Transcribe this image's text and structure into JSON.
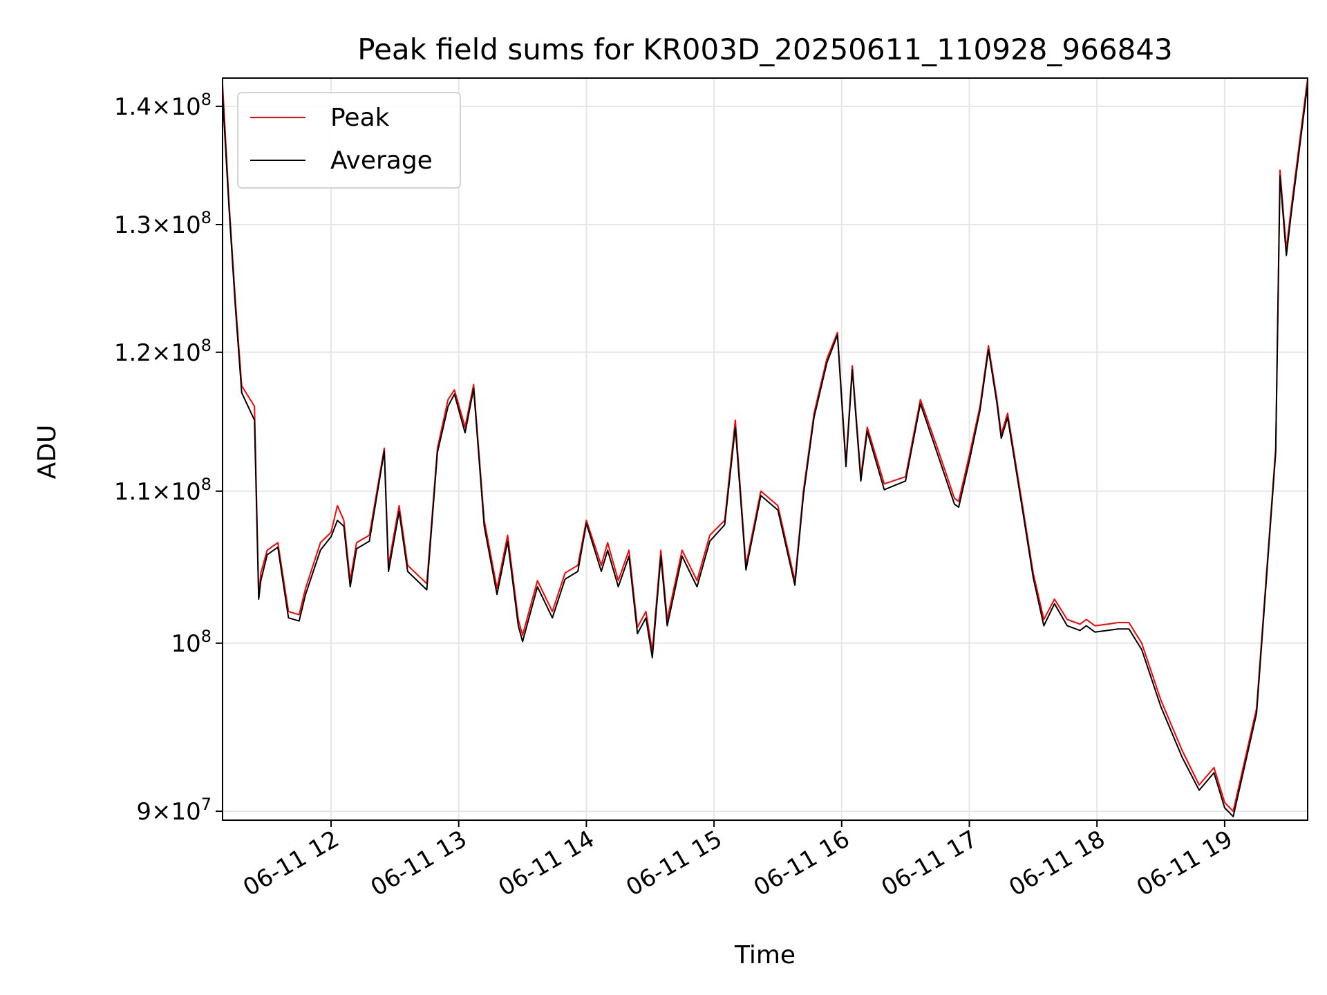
{
  "chart_data": {
    "type": "line",
    "title": "Peak field sums for KR003D_20250611_110928_966843",
    "xlabel": "Time",
    "ylabel": "ADU",
    "yscale": "log",
    "ylim": [
      89500000,
      142500000
    ],
    "xlim": [
      "2025-06-11 11:09",
      "2025-06-11 19:39"
    ],
    "grid": true,
    "legend": {
      "placement": "upper-left",
      "entries": [
        "Peak",
        "Average"
      ]
    },
    "colors": {
      "Peak": "#ff0000",
      "Average": "#000000"
    },
    "yticks": [
      {
        "value": 90000000,
        "base": "9",
        "exp": "7"
      },
      {
        "value": 100000000,
        "base": "",
        "exp": "8"
      },
      {
        "value": 110000000,
        "base": "1.1",
        "exp": "8"
      },
      {
        "value": 120000000,
        "base": "1.2",
        "exp": "8"
      },
      {
        "value": 130000000,
        "base": "1.3",
        "exp": "8"
      },
      {
        "value": 140000000,
        "base": "1.4",
        "exp": "8"
      }
    ],
    "xticks": [
      {
        "value": "2025-06-11 12:00",
        "label": "06-11 12"
      },
      {
        "value": "2025-06-11 13:00",
        "label": "06-11 13"
      },
      {
        "value": "2025-06-11 14:00",
        "label": "06-11 14"
      },
      {
        "value": "2025-06-11 15:00",
        "label": "06-11 15"
      },
      {
        "value": "2025-06-11 16:00",
        "label": "06-11 16"
      },
      {
        "value": "2025-06-11 17:00",
        "label": "06-11 17"
      },
      {
        "value": "2025-06-11 18:00",
        "label": "06-11 18"
      },
      {
        "value": "2025-06-11 19:00",
        "label": "06-11 19"
      }
    ],
    "series": [
      {
        "name": "Peak",
        "x": [
          "2025-06-11 11:09",
          "2025-06-11 11:12",
          "2025-06-11 11:15",
          "2025-06-11 11:18",
          "2025-06-11 11:24",
          "2025-06-11 11:26",
          "2025-06-11 11:27",
          "2025-06-11 11:30",
          "2025-06-11 11:35",
          "2025-06-11 11:40",
          "2025-06-11 11:45",
          "2025-06-11 11:48",
          "2025-06-11 11:55",
          "2025-06-11 12:00",
          "2025-06-11 12:03",
          "2025-06-11 12:06",
          "2025-06-11 12:09",
          "2025-06-11 12:12",
          "2025-06-11 12:18",
          "2025-06-11 12:25",
          "2025-06-11 12:27",
          "2025-06-11 12:32",
          "2025-06-11 12:36",
          "2025-06-11 12:45",
          "2025-06-11 12:50",
          "2025-06-11 12:55",
          "2025-06-11 12:58",
          "2025-06-11 13:03",
          "2025-06-11 13:07",
          "2025-06-11 13:12",
          "2025-06-11 13:18",
          "2025-06-11 13:23",
          "2025-06-11 13:28",
          "2025-06-11 13:30",
          "2025-06-11 13:37",
          "2025-06-11 13:44",
          "2025-06-11 13:50",
          "2025-06-11 13:56",
          "2025-06-11 14:00",
          "2025-06-11 14:07",
          "2025-06-11 14:10",
          "2025-06-11 14:15",
          "2025-06-11 14:20",
          "2025-06-11 14:24",
          "2025-06-11 14:28",
          "2025-06-11 14:31",
          "2025-06-11 14:35",
          "2025-06-11 14:38",
          "2025-06-11 14:45",
          "2025-06-11 14:52",
          "2025-06-11 14:58",
          "2025-06-11 15:05",
          "2025-06-11 15:10",
          "2025-06-11 15:15",
          "2025-06-11 15:22",
          "2025-06-11 15:30",
          "2025-06-11 15:38",
          "2025-06-11 15:42",
          "2025-06-11 15:47",
          "2025-06-11 15:53",
          "2025-06-11 15:58",
          "2025-06-11 16:02",
          "2025-06-11 16:05",
          "2025-06-11 16:09",
          "2025-06-11 16:12",
          "2025-06-11 16:20",
          "2025-06-11 16:30",
          "2025-06-11 16:37",
          "2025-06-11 16:45",
          "2025-06-11 16:53",
          "2025-06-11 16:55",
          "2025-06-11 17:00",
          "2025-06-11 17:05",
          "2025-06-11 17:09",
          "2025-06-11 17:13",
          "2025-06-11 17:15",
          "2025-06-11 17:18",
          "2025-06-11 17:25",
          "2025-06-11 17:30",
          "2025-06-11 17:35",
          "2025-06-11 17:40",
          "2025-06-11 17:46",
          "2025-06-11 17:52",
          "2025-06-11 17:55",
          "2025-06-11 17:59",
          "2025-06-11 18:05",
          "2025-06-11 18:10",
          "2025-06-11 18:15",
          "2025-06-11 18:21",
          "2025-06-11 18:30",
          "2025-06-11 18:40",
          "2025-06-11 18:48",
          "2025-06-11 18:55",
          "2025-06-11 19:00",
          "2025-06-11 19:04",
          "2025-06-11 19:15",
          "2025-06-11 19:24",
          "2025-06-11 19:26",
          "2025-06-11 19:29",
          "2025-06-11 19:31",
          "2025-06-11 19:39"
        ],
        "y": [
          142000000,
          132000000,
          124000000,
          117500000,
          116000000,
          103000000,
          104500000,
          106000000,
          106500000,
          102000000,
          101800000,
          103500000,
          106500000,
          107200000,
          109000000,
          108000000,
          104000000,
          106500000,
          107000000,
          113000000,
          105000000,
          109000000,
          105000000,
          103800000,
          113000000,
          116500000,
          117200000,
          114500000,
          117600000,
          108000000,
          103500000,
          107000000,
          101500000,
          100500000,
          104000000,
          102000000,
          104500000,
          105000000,
          108000000,
          105000000,
          106500000,
          104000000,
          106000000,
          101000000,
          102000000,
          99500000,
          106000000,
          101500000,
          106000000,
          104000000,
          107000000,
          108000000,
          115000000,
          105000000,
          110000000,
          109000000,
          104000000,
          110000000,
          115500000,
          119500000,
          121500000,
          112000000,
          119000000,
          111000000,
          114500000,
          110500000,
          111000000,
          116500000,
          113000000,
          109500000,
          109300000,
          112500000,
          116000000,
          120500000,
          116500000,
          114000000,
          115500000,
          109000000,
          104500000,
          101500000,
          102800000,
          101500000,
          101200000,
          101500000,
          101100000,
          101200000,
          101300000,
          101300000,
          100000000,
          96500000,
          93500000,
          91500000,
          92500000,
          90500000,
          90000000,
          96000000,
          113000000,
          134500000,
          128000000,
          131000000,
          142500000
        ]
      },
      {
        "name": "Average",
        "x": [
          "2025-06-11 11:09",
          "2025-06-11 11:12",
          "2025-06-11 11:15",
          "2025-06-11 11:18",
          "2025-06-11 11:24",
          "2025-06-11 11:26",
          "2025-06-11 11:27",
          "2025-06-11 11:30",
          "2025-06-11 11:35",
          "2025-06-11 11:40",
          "2025-06-11 11:45",
          "2025-06-11 11:48",
          "2025-06-11 11:55",
          "2025-06-11 12:00",
          "2025-06-11 12:03",
          "2025-06-11 12:06",
          "2025-06-11 12:09",
          "2025-06-11 12:12",
          "2025-06-11 12:18",
          "2025-06-11 12:25",
          "2025-06-11 12:27",
          "2025-06-11 12:32",
          "2025-06-11 12:36",
          "2025-06-11 12:45",
          "2025-06-11 12:50",
          "2025-06-11 12:55",
          "2025-06-11 12:58",
          "2025-06-11 13:03",
          "2025-06-11 13:07",
          "2025-06-11 13:12",
          "2025-06-11 13:18",
          "2025-06-11 13:23",
          "2025-06-11 13:28",
          "2025-06-11 13:30",
          "2025-06-11 13:37",
          "2025-06-11 13:44",
          "2025-06-11 13:50",
          "2025-06-11 13:56",
          "2025-06-11 14:00",
          "2025-06-11 14:07",
          "2025-06-11 14:10",
          "2025-06-11 14:15",
          "2025-06-11 14:20",
          "2025-06-11 14:24",
          "2025-06-11 14:28",
          "2025-06-11 14:31",
          "2025-06-11 14:35",
          "2025-06-11 14:38",
          "2025-06-11 14:45",
          "2025-06-11 14:52",
          "2025-06-11 14:58",
          "2025-06-11 15:05",
          "2025-06-11 15:10",
          "2025-06-11 15:15",
          "2025-06-11 15:22",
          "2025-06-11 15:30",
          "2025-06-11 15:38",
          "2025-06-11 15:42",
          "2025-06-11 15:47",
          "2025-06-11 15:53",
          "2025-06-11 15:58",
          "2025-06-11 16:02",
          "2025-06-11 16:05",
          "2025-06-11 16:09",
          "2025-06-11 16:12",
          "2025-06-11 16:20",
          "2025-06-11 16:30",
          "2025-06-11 16:37",
          "2025-06-11 16:45",
          "2025-06-11 16:53",
          "2025-06-11 16:55",
          "2025-06-11 17:00",
          "2025-06-11 17:05",
          "2025-06-11 17:09",
          "2025-06-11 17:13",
          "2025-06-11 17:15",
          "2025-06-11 17:18",
          "2025-06-11 17:25",
          "2025-06-11 17:30",
          "2025-06-11 17:35",
          "2025-06-11 17:40",
          "2025-06-11 17:46",
          "2025-06-11 17:52",
          "2025-06-11 17:55",
          "2025-06-11 17:59",
          "2025-06-11 18:05",
          "2025-06-11 18:10",
          "2025-06-11 18:15",
          "2025-06-11 18:21",
          "2025-06-11 18:30",
          "2025-06-11 18:40",
          "2025-06-11 18:48",
          "2025-06-11 18:55",
          "2025-06-11 19:00",
          "2025-06-11 19:04",
          "2025-06-11 19:15",
          "2025-06-11 19:24",
          "2025-06-11 19:26",
          "2025-06-11 19:29",
          "2025-06-11 19:31",
          "2025-06-11 19:39"
        ],
        "y": [
          141000000,
          131500000,
          123500000,
          117000000,
          115000000,
          102800000,
          104000000,
          105700000,
          106200000,
          101600000,
          101400000,
          103100000,
          106000000,
          106900000,
          108000000,
          107600000,
          103600000,
          106100000,
          106600000,
          112800000,
          104600000,
          108600000,
          104600000,
          103400000,
          112700000,
          116000000,
          116900000,
          114100000,
          117300000,
          107600000,
          103100000,
          106600000,
          101100000,
          100100000,
          103600000,
          101600000,
          104100000,
          104600000,
          107800000,
          104600000,
          106000000,
          103600000,
          105600000,
          100600000,
          101600000,
          99100000,
          105600000,
          101100000,
          105600000,
          103600000,
          106600000,
          107700000,
          114500000,
          104700000,
          109700000,
          108700000,
          103700000,
          109700000,
          115200000,
          119200000,
          121300000,
          111700000,
          118700000,
          110700000,
          114200000,
          110100000,
          110700000,
          116200000,
          112600000,
          109100000,
          108900000,
          112100000,
          115700000,
          120200000,
          116200000,
          113700000,
          115200000,
          108700000,
          104200000,
          101100000,
          102500000,
          101100000,
          100800000,
          101100000,
          100700000,
          100800000,
          100900000,
          100900000,
          99600000,
          96100000,
          93100000,
          91200000,
          92200000,
          90200000,
          89700000,
          95700000,
          112700000,
          134000000,
          127500000,
          130500000,
          142000000
        ]
      }
    ]
  }
}
